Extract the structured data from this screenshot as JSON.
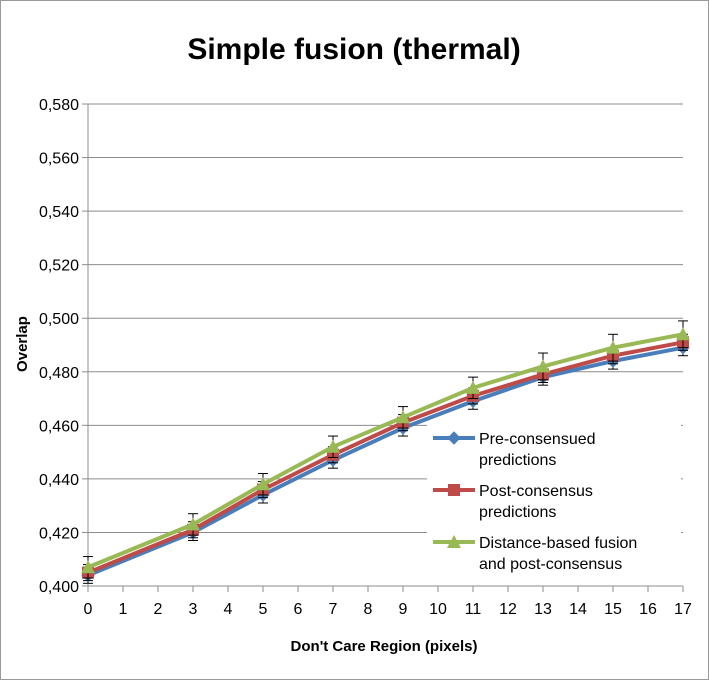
{
  "chart_data": {
    "type": "line",
    "title": "Simple fusion (thermal)",
    "xlabel": "Don't Care Region (pixels)",
    "ylabel": "Overlap",
    "x_ticks": [
      "0",
      "1",
      "2",
      "3",
      "4",
      "5",
      "6",
      "7",
      "8",
      "9",
      "10",
      "11",
      "12",
      "13",
      "14",
      "15",
      "16",
      "17"
    ],
    "y_ticks": [
      "0,400",
      "0,420",
      "0,440",
      "0,460",
      "0,480",
      "0,500",
      "0,520",
      "0,540",
      "0,560",
      "0,580"
    ],
    "xlim": [
      0,
      17
    ],
    "ylim": [
      0.4,
      0.58
    ],
    "grid": "horizontal",
    "legend_position": "right",
    "x": [
      0,
      3,
      5,
      7,
      9,
      11,
      13,
      15,
      17
    ],
    "series": [
      {
        "name": "Pre-consensued predictions",
        "legend_lines": [
          "Pre-consensued",
          "predictions"
        ],
        "color": "#4a7ebb",
        "marker": "diamond",
        "values": [
          0.404,
          0.42,
          0.434,
          0.447,
          0.459,
          0.469,
          0.478,
          0.484,
          0.489
        ],
        "error": [
          0.003,
          0.003,
          0.003,
          0.003,
          0.003,
          0.003,
          0.003,
          0.003,
          0.003
        ]
      },
      {
        "name": "Post-consensus predictions",
        "legend_lines": [
          "Post-consensus",
          "predictions"
        ],
        "color": "#be4b48",
        "marker": "square",
        "values": [
          0.405,
          0.421,
          0.436,
          0.449,
          0.461,
          0.471,
          0.479,
          0.486,
          0.491
        ],
        "error": [
          0.003,
          0.003,
          0.003,
          0.003,
          0.003,
          0.003,
          0.003,
          0.003,
          0.003
        ]
      },
      {
        "name": "Distance-based fusion and post-consensus",
        "legend_lines": [
          "Distance-based fusion",
          "and post-consensus"
        ],
        "color": "#98b954",
        "marker": "triangle",
        "values": [
          0.407,
          0.423,
          0.438,
          0.452,
          0.463,
          0.474,
          0.482,
          0.489,
          0.494
        ],
        "error": [
          0.004,
          0.004,
          0.004,
          0.004,
          0.004,
          0.004,
          0.005,
          0.005,
          0.005
        ]
      }
    ]
  }
}
